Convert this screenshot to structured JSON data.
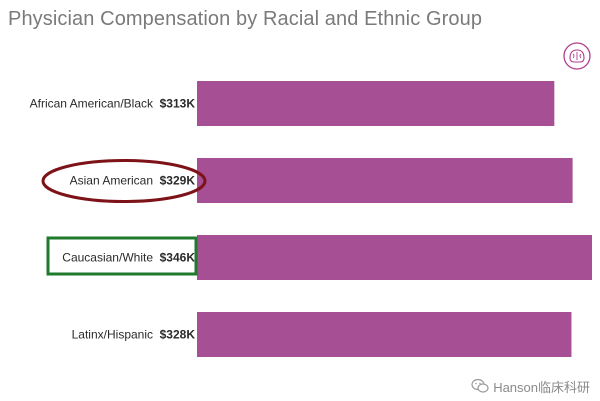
{
  "chart_data": {
    "type": "bar",
    "orientation": "horizontal",
    "title": "Physician Compensation by Racial and Ethnic Group",
    "categories": [
      "African American/Black",
      "Asian American",
      "Caucasian/White",
      "Latinx/Hispanic"
    ],
    "values": [
      313,
      329,
      346,
      328
    ],
    "value_labels": [
      "$313K",
      "$329K",
      "$346K",
      "$328K"
    ],
    "unit": "thousand USD",
    "xlim": [
      0,
      346
    ],
    "bar_color": "#a64f95",
    "grid": false,
    "legend": "none",
    "highlights": [
      {
        "category": "Asian American",
        "shape": "ellipse",
        "color": "#7d1218"
      },
      {
        "category": "Caucasian/White",
        "shape": "rectangle",
        "color": "#1f7a2c"
      }
    ]
  },
  "watermark": {
    "text": "Hanson临床科研",
    "icon": "wechat-icon"
  },
  "logo": {
    "icon": "brain-logo-icon"
  }
}
